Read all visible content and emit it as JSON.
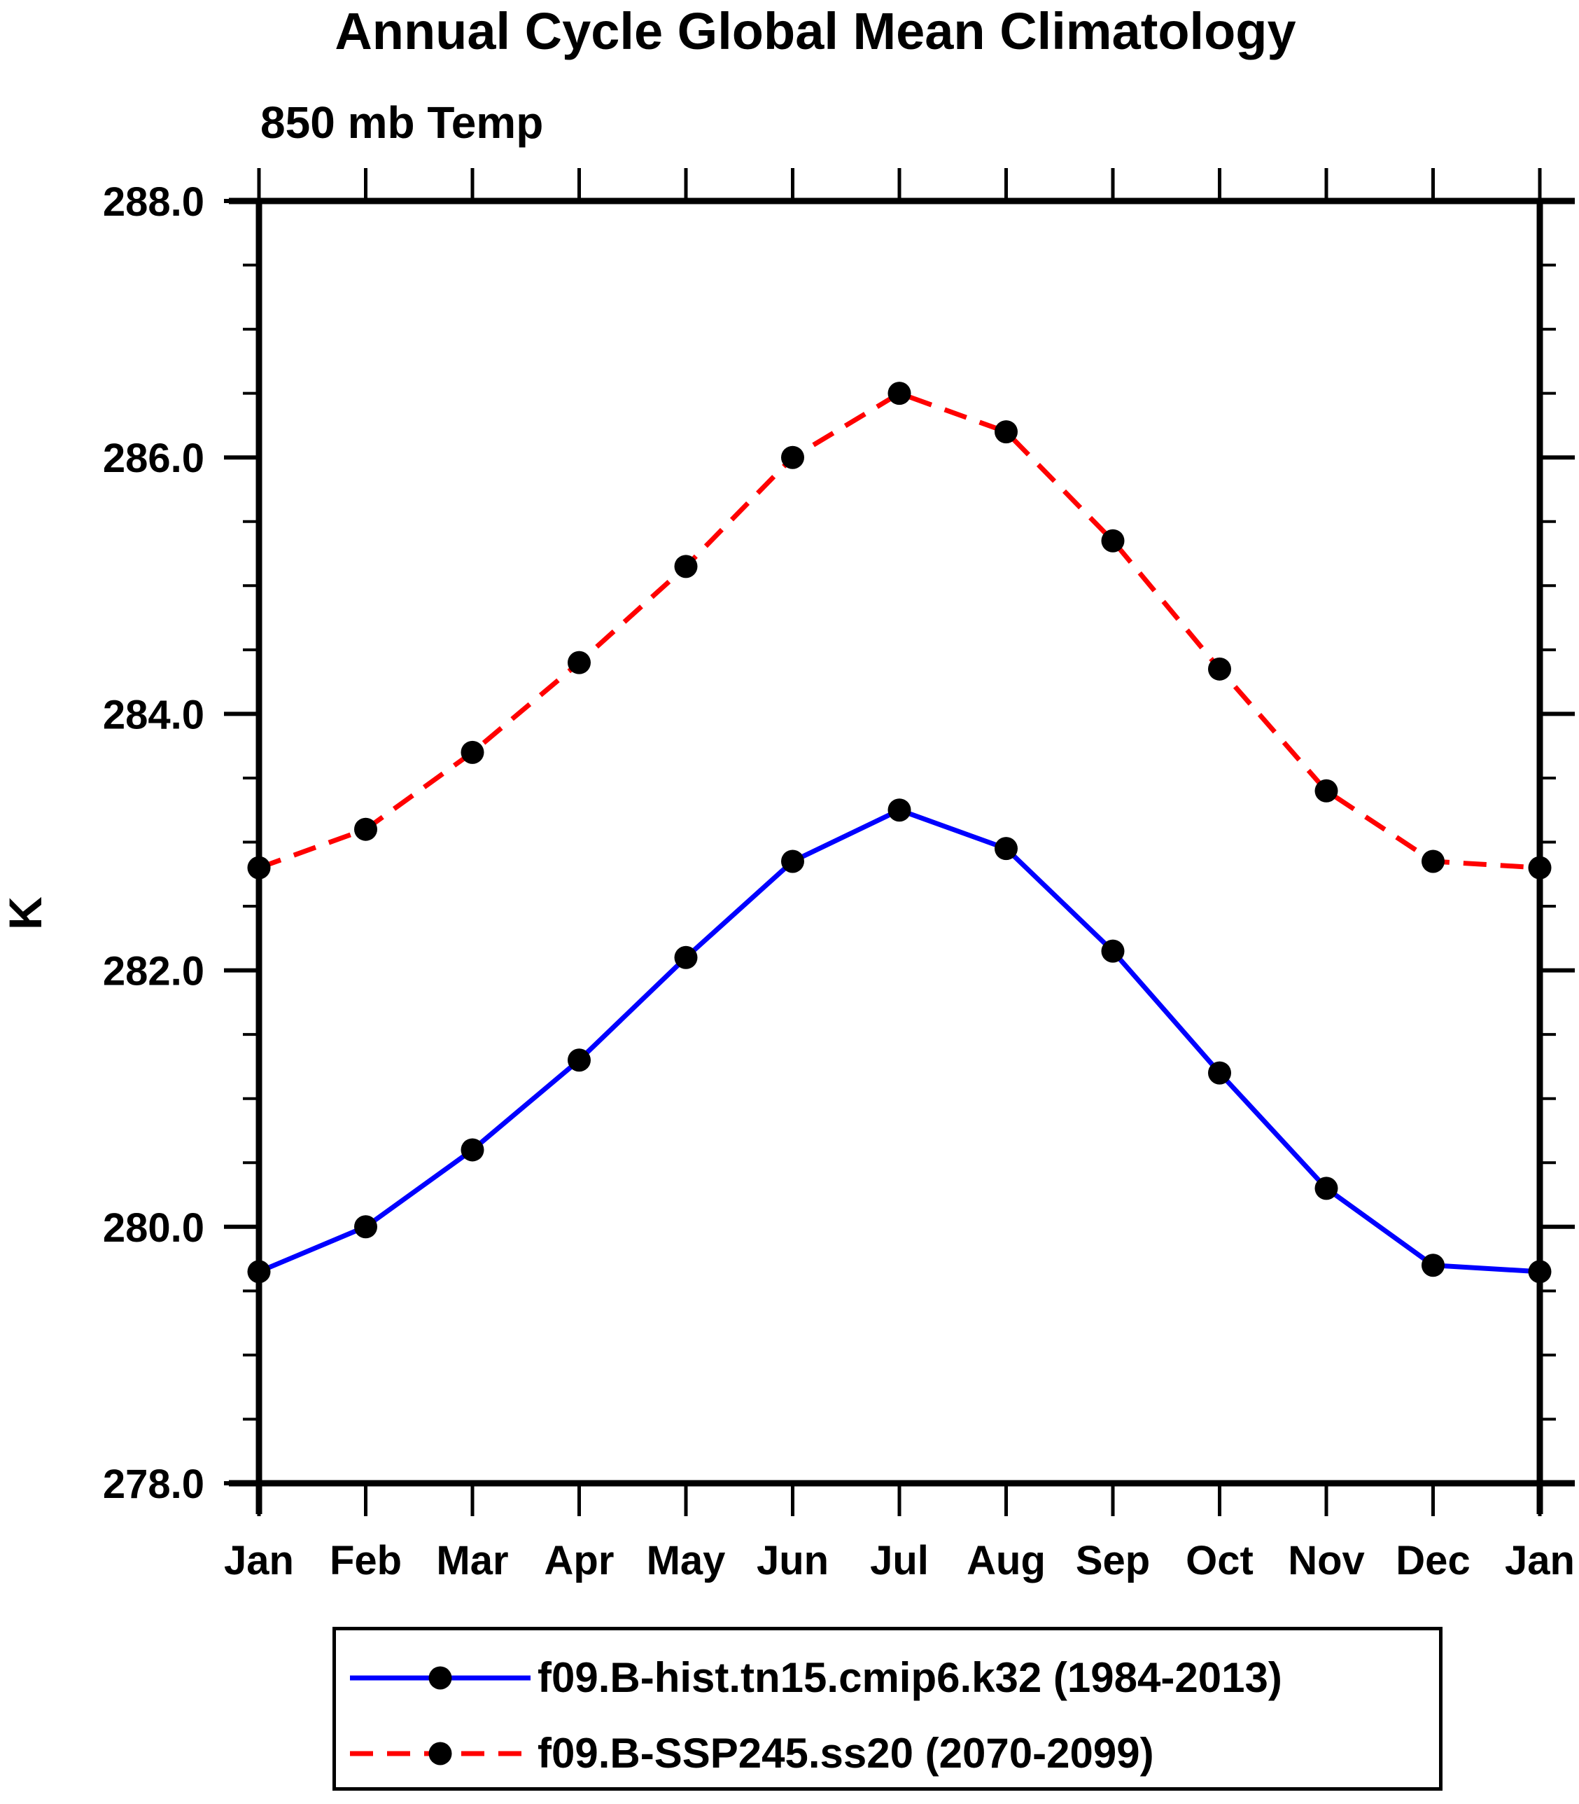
{
  "chart_data": {
    "type": "line",
    "title": "Annual Cycle Global Mean Climatology",
    "subtitle": "850 mb Temp",
    "ylabel": "K",
    "xlabel": "",
    "ylim": [
      278.0,
      288.0
    ],
    "y_major_step": 2.0,
    "y_minor_step": 0.5,
    "y_tick_labels": [
      "288.0",
      "286.0",
      "284.0",
      "282.0",
      "280.0",
      "278.0"
    ],
    "y_tick_values": [
      288.0,
      286.0,
      284.0,
      282.0,
      280.0,
      278.0
    ],
    "categories": [
      "Jan",
      "Feb",
      "Mar",
      "Apr",
      "May",
      "Jun",
      "Jul",
      "Aug",
      "Sep",
      "Oct",
      "Nov",
      "Dec",
      "Jan"
    ],
    "grid": false,
    "legend_position": "bottom",
    "marker": "filled-circle",
    "marker_color": "#000000",
    "axis_color": "#000000",
    "series": [
      {
        "name": "f09.B-hist.tn15.cmip6.k32 (1984-2013)",
        "color": "#0000ff",
        "line_style": "solid",
        "values": [
          279.65,
          280.0,
          280.6,
          281.3,
          282.1,
          282.85,
          283.25,
          282.95,
          282.15,
          281.2,
          280.3,
          279.7,
          279.65
        ]
      },
      {
        "name": "f09.B-SSP245.ss20 (2070-2099)",
        "color": "#ff0000",
        "line_style": "dashed",
        "values": [
          282.8,
          283.1,
          283.7,
          284.4,
          285.15,
          286.0,
          286.5,
          286.2,
          285.35,
          284.35,
          283.4,
          282.85,
          282.8
        ]
      }
    ]
  }
}
